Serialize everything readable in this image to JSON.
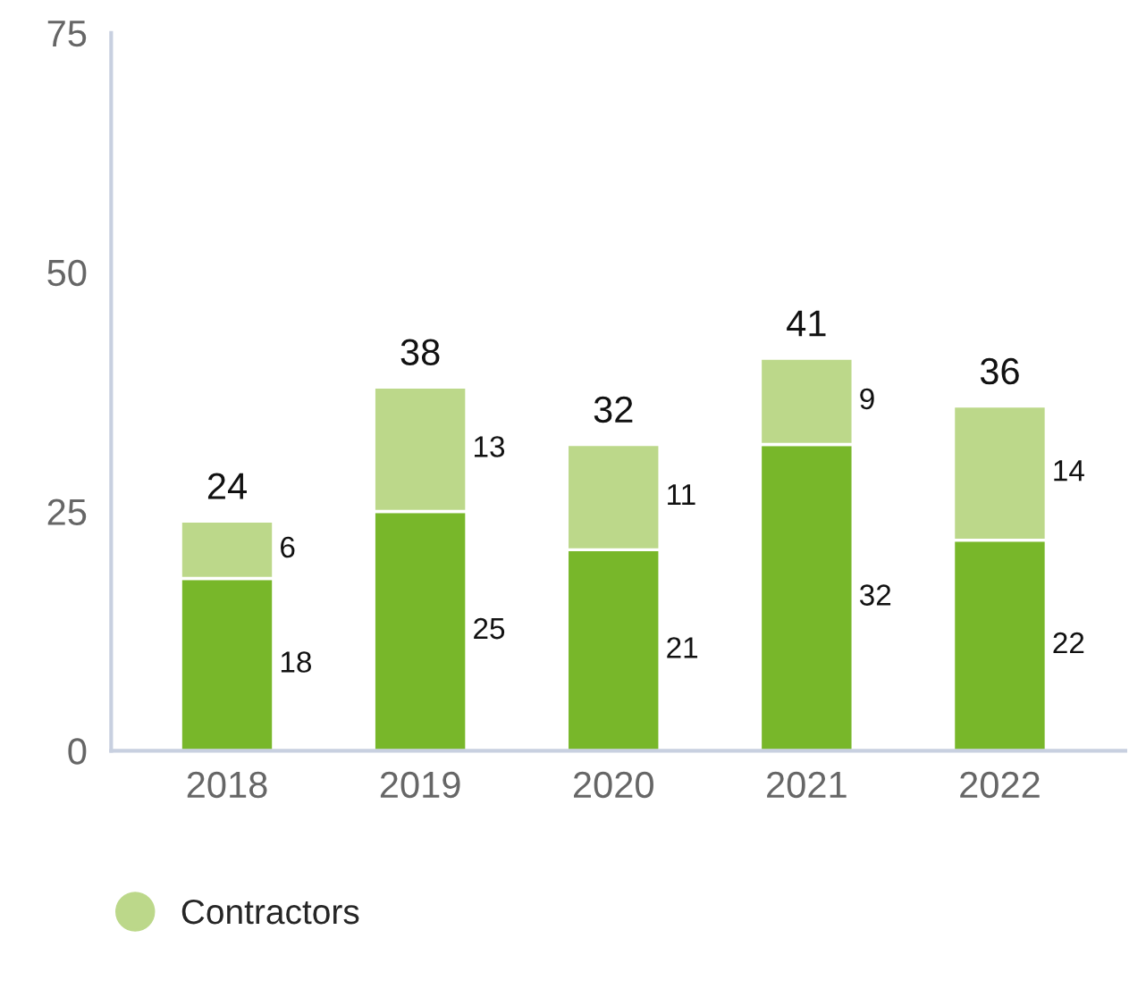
{
  "chart_data": {
    "type": "bar",
    "stacked": true,
    "categories": [
      "2018",
      "2019",
      "2020",
      "2021",
      "2022"
    ],
    "series": [
      {
        "color": "#78b72a",
        "values": [
          18,
          25,
          21,
          32,
          22
        ]
      },
      {
        "name": "Contractors",
        "color": "#bcd88a",
        "values": [
          6,
          13,
          11,
          9,
          14
        ]
      }
    ],
    "ylim": [
      0,
      75
    ],
    "yticks": [
      0,
      25,
      50,
      75
    ],
    "grid": false,
    "legend": "bottom left",
    "data_labels": true,
    "totals": [
      "24",
      "38",
      "32",
      "41",
      "36"
    ]
  }
}
